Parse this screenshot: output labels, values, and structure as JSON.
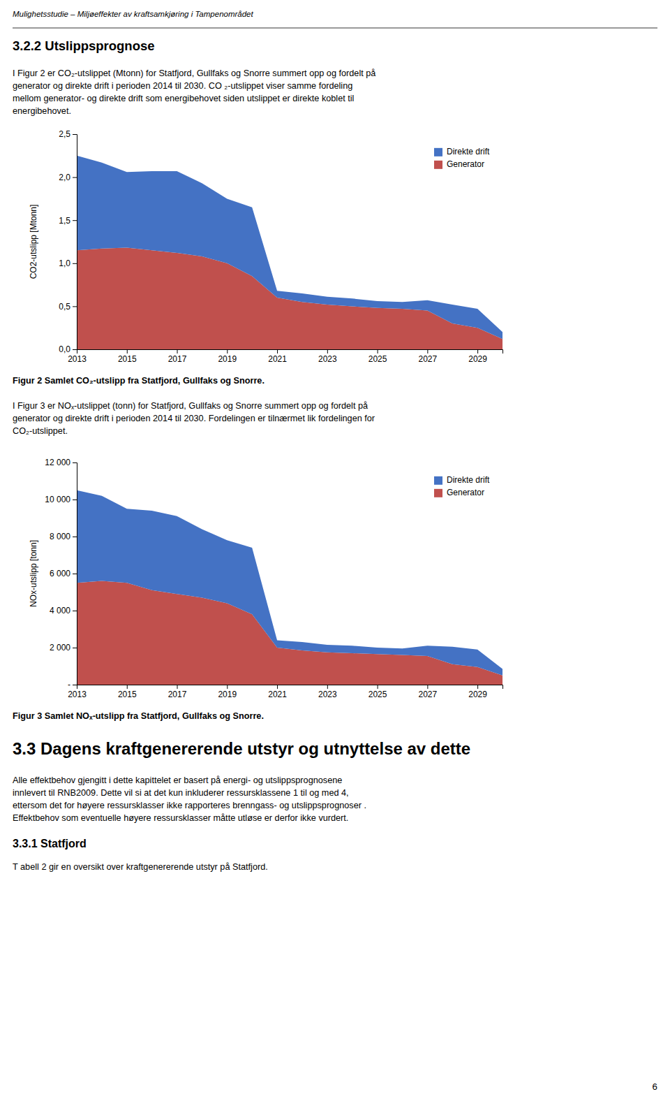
{
  "page": {
    "header": "Mulighetsstudie – Miljøeffekter av kraftsamkjøring i Tampenområdet",
    "section_title": "3.2.2  Utslippsprognose",
    "paragraph_1": [
      "I Figur 2 er CO₂-utslippet (Mtonn) for Statfjord, Gullfaks og Snorre summert opp og fordelt  på",
      "generator og direkte drift i perioden 2014 til 2030. CO ₂-utslippet viser samme fordeling",
      "mellom generator- og direkte drift som energibehovet siden utslippet er direkte koblet til",
      "energibehovet."
    ],
    "figure_2_caption": "Figur 2 Samlet CO₂-utslipp fra Statfjord, Gullfaks og Snorre.",
    "paragraph_2": [
      "I Figur 3 er NOₓ-utslippet (tonn) for Statfjord, Gullfaks og Snorre summert opp og fordelt  på",
      "generator og direkte drift i perioden 2014 til 2030. Fordelingen  er tilnærmet lik fordelingen for",
      "CO₂-utslippet."
    ],
    "figure_3_caption": "Figur 3 Samlet NOₓ-utslipp fra Statfjord, Gullfaks og Snorre.",
    "section_2_title": "3.3 Dagens kraftgenererende utstyr og utnyttelse av dette",
    "paragraph_3": [
      "Alle effektbehov gjengitt i dette kapittelet er basert på energi- og utslippsprognosene",
      "innlevert til RNB2009. Dette vil si at det kun inkluderer ressursklassene 1 til og med 4,",
      "ettersom det for høyere ressursklasser ikke rapporteres brenngass- og utslippsprognoser .",
      "Effektbehov som eventuelle  høyere ressursklasser måtte utløse er derfor ikke vurdert."
    ],
    "subsection_title": "3.3.1  Statfjord",
    "paragraph_4": "T abell 2 gir en oversikt over kraftgenererende utstyr på Statfjord.",
    "page_number": "6"
  },
  "chart_data": [
    {
      "type": "area",
      "stacked": true,
      "grid": false,
      "legend": "upper right",
      "ylabel": "CO2-utslipp [Mtonn]",
      "x": [
        2013,
        2014,
        2015,
        2016,
        2017,
        2018,
        2019,
        2020,
        2021,
        2022,
        2023,
        2024,
        2025,
        2026,
        2027,
        2028,
        2029,
        2030
      ],
      "xlim": [
        2013,
        2030
      ],
      "xticks": [
        2013,
        2015,
        2017,
        2019,
        2021,
        2023,
        2025,
        2027,
        2029
      ],
      "ylim": [
        0,
        2.5
      ],
      "yticks": [
        {
          "value": 0.0,
          "label": "0,0"
        },
        {
          "value": 0.5,
          "label": "0,5"
        },
        {
          "value": 1.0,
          "label": "1,0"
        },
        {
          "value": 1.5,
          "label": "1,5"
        },
        {
          "value": 2.0,
          "label": "2,0"
        },
        {
          "value": 2.5,
          "label": "2,5"
        }
      ],
      "series": [
        {
          "name": "Generator",
          "color": "#C0504D",
          "values": [
            1.15,
            1.17,
            1.18,
            1.15,
            1.12,
            1.08,
            1.0,
            0.85,
            0.6,
            0.55,
            0.52,
            0.5,
            0.48,
            0.47,
            0.45,
            0.3,
            0.25,
            0.12
          ]
        },
        {
          "name": "Direkte drift",
          "color": "#4472C4",
          "values": [
            1.1,
            1.0,
            0.88,
            0.92,
            0.95,
            0.85,
            0.75,
            0.8,
            0.08,
            0.1,
            0.09,
            0.09,
            0.08,
            0.08,
            0.12,
            0.22,
            0.22,
            0.08
          ]
        }
      ]
    },
    {
      "type": "area",
      "stacked": true,
      "grid": false,
      "legend": "upper right",
      "ylabel": "NOx-utslipp [tonn]",
      "x": [
        2013,
        2014,
        2015,
        2016,
        2017,
        2018,
        2019,
        2020,
        2021,
        2022,
        2023,
        2024,
        2025,
        2026,
        2027,
        2028,
        2029,
        2030
      ],
      "xlim": [
        2013,
        2030
      ],
      "xticks": [
        2013,
        2015,
        2017,
        2019,
        2021,
        2023,
        2025,
        2027,
        2029
      ],
      "ylim": [
        0,
        12000
      ],
      "yticks": [
        {
          "value": 0,
          "label": "-"
        },
        {
          "value": 2000,
          "label": "2 000"
        },
        {
          "value": 4000,
          "label": "4 000"
        },
        {
          "value": 6000,
          "label": "6 000"
        },
        {
          "value": 8000,
          "label": "8 000"
        },
        {
          "value": 10000,
          "label": "10 000"
        },
        {
          "value": 12000,
          "label": "12 000"
        }
      ],
      "series": [
        {
          "name": "Generator",
          "color": "#C0504D",
          "values": [
            5500,
            5600,
            5500,
            5100,
            4900,
            4700,
            4400,
            3800,
            2000,
            1850,
            1750,
            1700,
            1650,
            1600,
            1550,
            1100,
            950,
            500
          ]
        },
        {
          "name": "Direkte drift",
          "color": "#4472C4",
          "values": [
            5000,
            4600,
            4000,
            4300,
            4200,
            3700,
            3400,
            3600,
            400,
            450,
            400,
            400,
            350,
            350,
            550,
            950,
            950,
            350
          ]
        }
      ]
    }
  ]
}
